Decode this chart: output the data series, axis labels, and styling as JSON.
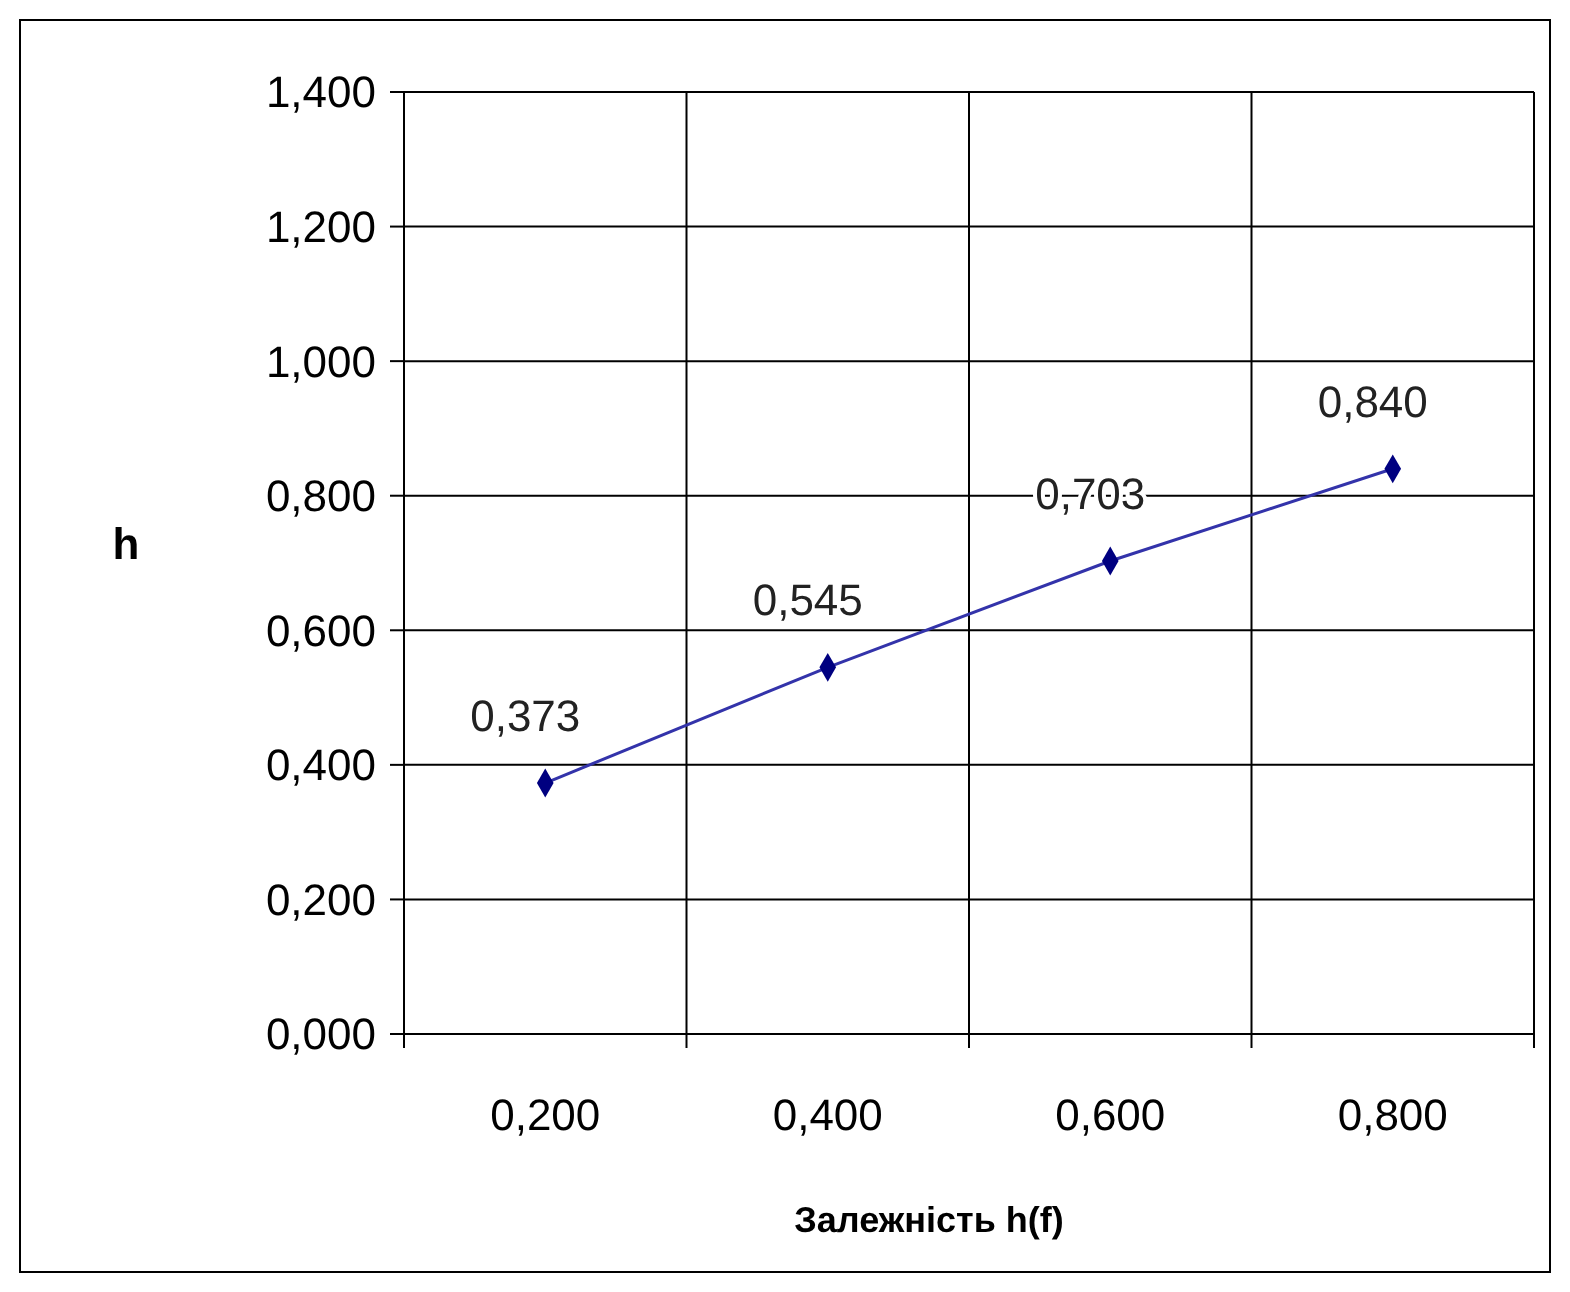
{
  "chart_data": {
    "type": "line",
    "xlabel": "Залежність h(f)",
    "ylabel": "h",
    "categories": [
      "0,200",
      "0,400",
      "0,600",
      "0,800"
    ],
    "series": [
      {
        "color": "#3333aa",
        "values": [
          0.373,
          0.545,
          0.703,
          0.84
        ],
        "value_labels": [
          "0,373",
          "0,545",
          "0,703",
          "0,840"
        ]
      }
    ],
    "ylim": [
      0,
      1.4
    ],
    "yticks": [
      {
        "value": 0,
        "label": "0,000"
      },
      {
        "value": 0.2,
        "label": "0,200"
      },
      {
        "value": 0.4,
        "label": "0,400"
      },
      {
        "value": 0.6,
        "label": "0,600"
      },
      {
        "value": 0.8,
        "label": "0,800"
      },
      {
        "value": 1,
        "label": "1,000"
      },
      {
        "value": 1.2,
        "label": "1,200"
      },
      {
        "value": 1.4,
        "label": "1,400"
      }
    ],
    "grid": true,
    "marker": "diamond"
  }
}
